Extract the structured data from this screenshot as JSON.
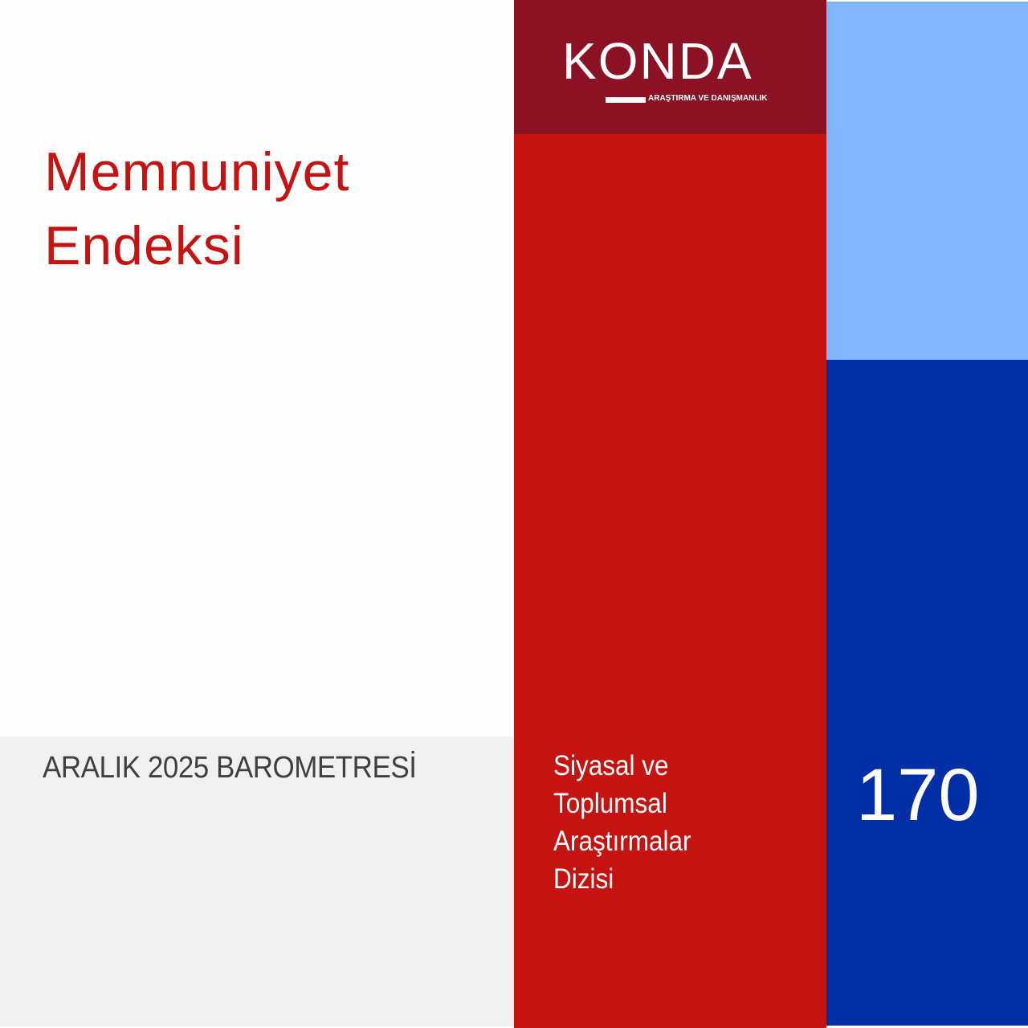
{
  "colors": {
    "dark_red": "#8b1224",
    "red": "#c41310",
    "light_blue": "#82b4ff",
    "dark_blue": "#002ea6",
    "gray": "#f1f1f1"
  },
  "logo": {
    "name": "KONDA",
    "tagline": "ARAŞTIRMA VE DANIŞMANLIK"
  },
  "title": {
    "line1": "Memnuniyet",
    "line2": "Endeksi"
  },
  "edition": "ARALIK 2025 BAROMETRESİ",
  "series": {
    "line1": "Siyasal ve",
    "line2": "Toplumsal",
    "line3": "Araştırmalar",
    "line4": "Dizisi"
  },
  "issue_number": "170"
}
